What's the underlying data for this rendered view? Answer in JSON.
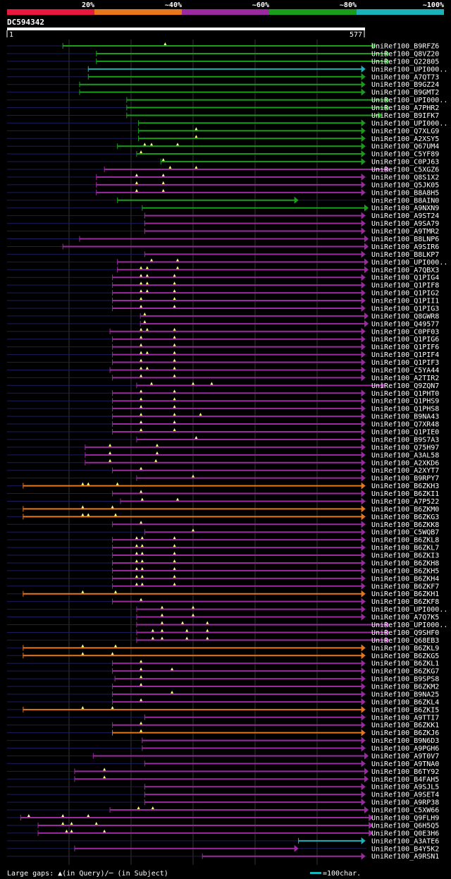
{
  "legend_top": {
    "labels": [
      "20%",
      "~40%",
      "~60%",
      "~80%",
      "~100%"
    ],
    "colors": [
      "#e8193c",
      "#e8761a",
      "#9b2aa0",
      "#1a9e1a",
      "#1ab3b8"
    ]
  },
  "query": {
    "id": "DC594342",
    "start_label": "1",
    "end_label": "577"
  },
  "footer": {
    "gap_text": "Large gaps: ▲(in Query)/─ (in Subject)",
    "scale_text": "=100char."
  },
  "colors": {
    "red": "#e8193c",
    "orange": "#e8761a",
    "purple": "#9b2aa0",
    "green": "#1a9e1a",
    "cyan": "#1ab3b8",
    "background": "#000000",
    "gridline": "#333333",
    "track": "#1c1c5a"
  },
  "chart_data": {
    "type": "alignment",
    "query_length": 577,
    "hits": [
      {
        "id": "UniRef100_B9RFZ6",
        "start": 90,
        "end": 595,
        "identity": "~80%",
        "query_gaps": [
          255
        ]
      },
      {
        "id": "UniRef100_Q8VZ20",
        "start": 144,
        "end": 617,
        "identity": "~80%",
        "query_gaps": []
      },
      {
        "id": "UniRef100_Q22805",
        "start": 144,
        "end": 617,
        "identity": "~80%",
        "query_gaps": []
      },
      {
        "id": "UniRef100_UPI000..",
        "start": 131,
        "end": 578,
        "identity": "~100%",
        "query_gaps": []
      },
      {
        "id": "UniRef100_A7QT73",
        "start": 131,
        "end": 578,
        "identity": "~80%",
        "query_gaps": []
      },
      {
        "id": "UniRef100_B9GZ24",
        "start": 117,
        "end": 578,
        "identity": "~80%",
        "query_gaps": []
      },
      {
        "id": "UniRef100_B9GMT2",
        "start": 117,
        "end": 578,
        "identity": "~80%",
        "query_gaps": []
      },
      {
        "id": "UniRef100_UPI000..",
        "start": 193,
        "end": 617,
        "identity": "~80%",
        "query_gaps": []
      },
      {
        "id": "UniRef100_A7PHR2",
        "start": 193,
        "end": 617,
        "identity": "~80%",
        "query_gaps": []
      },
      {
        "id": "UniRef100_B9IFK7",
        "start": 193,
        "end": 605,
        "identity": "~80%",
        "query_gaps": []
      },
      {
        "id": "UniRef100_UPI000..",
        "start": 212,
        "end": 578,
        "identity": "~80%",
        "query_gaps": []
      },
      {
        "id": "UniRef100_Q7XLG9",
        "start": 212,
        "end": 578,
        "identity": "~80%",
        "query_gaps": [
          305
        ]
      },
      {
        "id": "UniRef100_A2XSY5",
        "start": 212,
        "end": 578,
        "identity": "~80%",
        "query_gaps": [
          305
        ]
      },
      {
        "id": "UniRef100_Q67UM4",
        "start": 178,
        "end": 578,
        "identity": "~80%",
        "query_gaps": [
          222,
          233,
          275
        ]
      },
      {
        "id": "UniRef100_C5YF89",
        "start": 209,
        "end": 578,
        "identity": "~80%",
        "query_gaps": [
          216
        ]
      },
      {
        "id": "UniRef100_C0PJ63",
        "start": 248,
        "end": 578,
        "identity": "~80%",
        "query_gaps": [
          252
        ]
      },
      {
        "id": "UniRef100_C5XGZ6",
        "start": 157,
        "end": 617,
        "identity": "~60%",
        "query_gaps": [
          263,
          305
        ]
      },
      {
        "id": "UniRef100_Q8S1X2",
        "start": 144,
        "end": 578,
        "identity": "~60%",
        "query_gaps": [
          209,
          252
        ]
      },
      {
        "id": "UniRef100_Q5JK05",
        "start": 144,
        "end": 578,
        "identity": "~60%",
        "query_gaps": [
          209,
          252
        ]
      },
      {
        "id": "UniRef100_B8A8H5",
        "start": 144,
        "end": 578,
        "identity": "~60%",
        "query_gaps": [
          209,
          252
        ]
      },
      {
        "id": "UniRef100_B8AIN0",
        "start": 178,
        "end": 470,
        "identity": "~80%",
        "query_gaps": []
      },
      {
        "id": "UniRef100_A9NXN9",
        "start": 218,
        "end": 583,
        "identity": "~80%",
        "query_gaps": []
      },
      {
        "id": "UniRef100_A9ST24",
        "start": 222,
        "end": 578,
        "identity": "~60%",
        "query_gaps": []
      },
      {
        "id": "UniRef100_A9SA79",
        "start": 222,
        "end": 578,
        "identity": "~60%",
        "query_gaps": []
      },
      {
        "id": "UniRef100_A9TMR2",
        "start": 222,
        "end": 578,
        "identity": "~60%",
        "query_gaps": []
      },
      {
        "id": "UniRef100_B8LNP6",
        "start": 117,
        "end": 583,
        "identity": "~60%",
        "query_gaps": []
      },
      {
        "id": "UniRef100_A9SIR6",
        "start": 90,
        "end": 583,
        "identity": "~60%",
        "query_gaps": []
      },
      {
        "id": "UniRef100_B8LKP7",
        "start": 222,
        "end": 578,
        "identity": "~60%",
        "query_gaps": []
      },
      {
        "id": "UniRef100_UPI000..",
        "start": 178,
        "end": 583,
        "identity": "~60%",
        "query_gaps": [
          233,
          275
        ]
      },
      {
        "id": "UniRef100_A7QBX3",
        "start": 178,
        "end": 583,
        "identity": "~60%",
        "query_gaps": [
          216,
          226,
          275
        ]
      },
      {
        "id": "UniRef100_Q1PIG4",
        "start": 170,
        "end": 578,
        "identity": "~60%",
        "query_gaps": [
          216,
          226,
          270
        ]
      },
      {
        "id": "UniRef100_Q1PIF8",
        "start": 170,
        "end": 578,
        "identity": "~60%",
        "query_gaps": [
          216,
          226,
          270
        ]
      },
      {
        "id": "UniRef100_Q1PIG2",
        "start": 170,
        "end": 578,
        "identity": "~60%",
        "query_gaps": [
          216,
          226,
          270
        ]
      },
      {
        "id": "UniRef100_Q1PII1",
        "start": 170,
        "end": 578,
        "identity": "~60%",
        "query_gaps": [
          216,
          270
        ]
      },
      {
        "id": "UniRef100_Q1PIG3",
        "start": 170,
        "end": 578,
        "identity": "~60%",
        "query_gaps": [
          216,
          270
        ]
      },
      {
        "id": "UniRef100_Q8GWR8",
        "start": 215,
        "end": 583,
        "identity": "~60%",
        "query_gaps": [
          222
        ]
      },
      {
        "id": "UniRef100_Q49577",
        "start": 215,
        "end": 583,
        "identity": "~60%",
        "query_gaps": [
          222
        ]
      },
      {
        "id": "UniRef100_C0PF03",
        "start": 166,
        "end": 578,
        "identity": "~60%",
        "query_gaps": [
          216,
          226,
          270
        ]
      },
      {
        "id": "UniRef100_Q1PIG6",
        "start": 170,
        "end": 578,
        "identity": "~60%",
        "query_gaps": [
          216,
          270
        ]
      },
      {
        "id": "UniRef100_Q1PIF6",
        "start": 170,
        "end": 578,
        "identity": "~60%",
        "query_gaps": [
          216,
          270
        ]
      },
      {
        "id": "UniRef100_Q1PIF4",
        "start": 170,
        "end": 578,
        "identity": "~60%",
        "query_gaps": [
          216,
          226,
          270
        ]
      },
      {
        "id": "UniRef100_Q1PIF3",
        "start": 170,
        "end": 578,
        "identity": "~60%",
        "query_gaps": [
          216,
          270
        ]
      },
      {
        "id": "UniRef100_C5YA44",
        "start": 166,
        "end": 578,
        "identity": "~60%",
        "query_gaps": [
          216,
          226,
          270
        ]
      },
      {
        "id": "UniRef100_A2TIR2",
        "start": 170,
        "end": 578,
        "identity": "~60%",
        "query_gaps": [
          216,
          270
        ]
      },
      {
        "id": "UniRef100_Q9ZQN7",
        "start": 209,
        "end": 610,
        "identity": "~60%",
        "query_gaps": [
          233,
          300,
          330
        ]
      },
      {
        "id": "UniRef100_Q1PHT0",
        "start": 170,
        "end": 578,
        "identity": "~60%",
        "query_gaps": [
          216,
          270
        ]
      },
      {
        "id": "UniRef100_Q1PHS9",
        "start": 170,
        "end": 578,
        "identity": "~60%",
        "query_gaps": [
          216,
          270
        ]
      },
      {
        "id": "UniRef100_Q1PHS8",
        "start": 170,
        "end": 578,
        "identity": "~60%",
        "query_gaps": [
          216,
          270
        ]
      },
      {
        "id": "UniRef100_B9NA43",
        "start": 170,
        "end": 578,
        "identity": "~60%",
        "query_gaps": [
          216,
          270,
          312
        ]
      },
      {
        "id": "UniRef100_Q7XR48",
        "start": 170,
        "end": 578,
        "identity": "~60%",
        "query_gaps": [
          216,
          270
        ]
      },
      {
        "id": "UniRef100_Q1PIE0",
        "start": 170,
        "end": 578,
        "identity": "~60%",
        "query_gaps": [
          216,
          270
        ]
      },
      {
        "id": "UniRef100_B9S7A3",
        "start": 209,
        "end": 578,
        "identity": "~60%",
        "query_gaps": [
          305
        ]
      },
      {
        "id": "UniRef100_Q75H97",
        "start": 126,
        "end": 578,
        "identity": "~60%",
        "query_gaps": [
          166,
          242
        ]
      },
      {
        "id": "UniRef100_A3AL58",
        "start": 126,
        "end": 578,
        "identity": "~60%",
        "query_gaps": [
          166,
          242
        ]
      },
      {
        "id": "UniRef100_A2XKD6",
        "start": 126,
        "end": 578,
        "identity": "~60%",
        "query_gaps": [
          166,
          240
        ]
      },
      {
        "id": "UniRef100_A2XYT7",
        "start": 170,
        "end": 578,
        "identity": "~60%",
        "query_gaps": [
          216
        ]
      },
      {
        "id": "UniRef100_B9RPY7",
        "start": 209,
        "end": 578,
        "identity": "~60%",
        "query_gaps": [
          300
        ]
      },
      {
        "id": "UniRef100_B6ZKH3",
        "start": 26,
        "end": 578,
        "identity": "~40%",
        "query_gaps": [
          122,
          131,
          178
        ]
      },
      {
        "id": "UniRef100_B6ZKI1",
        "start": 170,
        "end": 578,
        "identity": "~60%",
        "query_gaps": [
          216
        ]
      },
      {
        "id": "UniRef100_A7P522",
        "start": 183,
        "end": 578,
        "identity": "~60%",
        "query_gaps": [
          218,
          275
        ]
      },
      {
        "id": "UniRef100_B6ZKM0",
        "start": 26,
        "end": 578,
        "identity": "~40%",
        "query_gaps": [
          122,
          170
        ]
      },
      {
        "id": "UniRef100_B6ZKG3",
        "start": 26,
        "end": 578,
        "identity": "~40%",
        "query_gaps": [
          122,
          131,
          175
        ]
      },
      {
        "id": "UniRef100_B6ZKK8",
        "start": 170,
        "end": 578,
        "identity": "~60%",
        "query_gaps": [
          216
        ]
      },
      {
        "id": "UniRef100_C5WQB7",
        "start": 222,
        "end": 578,
        "identity": "~60%",
        "query_gaps": [
          300
        ]
      },
      {
        "id": "UniRef100_B6ZKL8",
        "start": 170,
        "end": 578,
        "identity": "~60%",
        "query_gaps": [
          209,
          218,
          270
        ]
      },
      {
        "id": "UniRef100_B6ZKL7",
        "start": 170,
        "end": 578,
        "identity": "~60%",
        "query_gaps": [
          209,
          218,
          270
        ]
      },
      {
        "id": "UniRef100_B6ZKI3",
        "start": 170,
        "end": 578,
        "identity": "~60%",
        "query_gaps": [
          209,
          218,
          270
        ]
      },
      {
        "id": "UniRef100_B6ZKH8",
        "start": 170,
        "end": 578,
        "identity": "~60%",
        "query_gaps": [
          209,
          218,
          270
        ]
      },
      {
        "id": "UniRef100_B6ZKH5",
        "start": 170,
        "end": 578,
        "identity": "~60%",
        "query_gaps": [
          209,
          218,
          270
        ]
      },
      {
        "id": "UniRef100_B6ZKH4",
        "start": 170,
        "end": 578,
        "identity": "~60%",
        "query_gaps": [
          209,
          218,
          270
        ]
      },
      {
        "id": "UniRef100_B6ZKF7",
        "start": 170,
        "end": 578,
        "identity": "~60%",
        "query_gaps": [
          209,
          218,
          270
        ]
      },
      {
        "id": "UniRef100_B6ZKH1",
        "start": 26,
        "end": 578,
        "identity": "~40%",
        "query_gaps": [
          122,
          175
        ]
      },
      {
        "id": "UniRef100_B6ZKF8",
        "start": 170,
        "end": 578,
        "identity": "~60%",
        "query_gaps": [
          216
        ]
      },
      {
        "id": "UniRef100_UPI000..",
        "start": 209,
        "end": 578,
        "identity": "~60%",
        "query_gaps": [
          250,
          300
        ]
      },
      {
        "id": "UniRef100_A7Q7K5",
        "start": 209,
        "end": 578,
        "identity": "~60%",
        "query_gaps": [
          250,
          300
        ]
      },
      {
        "id": "UniRef100_UPI000..",
        "start": 209,
        "end": 617,
        "identity": "~60%",
        "query_gaps": [
          250,
          283,
          323
        ]
      },
      {
        "id": "UniRef100_Q9SHF0",
        "start": 209,
        "end": 617,
        "identity": "~60%",
        "query_gaps": [
          235,
          250,
          290,
          323
        ]
      },
      {
        "id": "UniRef100_Q68EB3",
        "start": 209,
        "end": 617,
        "identity": "~60%",
        "query_gaps": [
          235,
          250,
          290,
          323
        ]
      },
      {
        "id": "UniRef100_B6ZKL9",
        "start": 26,
        "end": 578,
        "identity": "~40%",
        "query_gaps": [
          122,
          175
        ]
      },
      {
        "id": "UniRef100_B6ZKG5",
        "start": 26,
        "end": 578,
        "identity": "~40%",
        "query_gaps": [
          122,
          170
        ]
      },
      {
        "id": "UniRef100_B6ZKL1",
        "start": 170,
        "end": 578,
        "identity": "~60%",
        "query_gaps": [
          216
        ]
      },
      {
        "id": "UniRef100_B6ZKG7",
        "start": 170,
        "end": 578,
        "identity": "~60%",
        "query_gaps": [
          216,
          266
        ]
      },
      {
        "id": "UniRef100_B9SPS8",
        "start": 174,
        "end": 578,
        "identity": "~60%",
        "query_gaps": [
          216
        ]
      },
      {
        "id": "UniRef100_B6ZKM2",
        "start": 170,
        "end": 578,
        "identity": "~60%",
        "query_gaps": [
          216
        ]
      },
      {
        "id": "UniRef100_B9NA25",
        "start": 170,
        "end": 578,
        "identity": "~60%",
        "query_gaps": [
          266
        ]
      },
      {
        "id": "UniRef100_B6ZKL4",
        "start": 170,
        "end": 578,
        "identity": "~60%",
        "query_gaps": [
          216
        ]
      },
      {
        "id": "UniRef100_B6ZKI5",
        "start": 26,
        "end": 578,
        "identity": "~40%",
        "query_gaps": [
          122,
          170
        ]
      },
      {
        "id": "UniRef100_A9TTI7",
        "start": 222,
        "end": 578,
        "identity": "~60%",
        "query_gaps": []
      },
      {
        "id": "UniRef100_B6ZKK1",
        "start": 170,
        "end": 578,
        "identity": "~60%",
        "query_gaps": [
          216
        ]
      },
      {
        "id": "UniRef100_B6ZKJ6",
        "start": 170,
        "end": 578,
        "identity": "~40%",
        "query_gaps": [
          216
        ]
      },
      {
        "id": "UniRef100_B9N6D3",
        "start": 218,
        "end": 578,
        "identity": "~60%",
        "query_gaps": []
      },
      {
        "id": "UniRef100_A9PGH6",
        "start": 218,
        "end": 578,
        "identity": "~60%",
        "query_gaps": []
      },
      {
        "id": "UniRef100_A9T0V7",
        "start": 139,
        "end": 583,
        "identity": "~60%",
        "query_gaps": []
      },
      {
        "id": "UniRef100_A9TNA0",
        "start": 222,
        "end": 578,
        "identity": "~60%",
        "query_gaps": []
      },
      {
        "id": "UniRef100_B6TY92",
        "start": 109,
        "end": 583,
        "identity": "~60%",
        "query_gaps": [
          157
        ]
      },
      {
        "id": "UniRef100_B4FAH5",
        "start": 109,
        "end": 583,
        "identity": "~60%",
        "query_gaps": [
          157
        ]
      },
      {
        "id": "UniRef100_A9SJL5",
        "start": 222,
        "end": 578,
        "identity": "~60%",
        "query_gaps": []
      },
      {
        "id": "UniRef100_A9SET4",
        "start": 222,
        "end": 578,
        "identity": "~60%",
        "query_gaps": []
      },
      {
        "id": "UniRef100_A9RP38",
        "start": 222,
        "end": 578,
        "identity": "~60%",
        "query_gaps": []
      },
      {
        "id": "UniRef100_C5XW66",
        "start": 166,
        "end": 583,
        "identity": "~60%",
        "query_gaps": [
          212,
          235
        ]
      },
      {
        "id": "UniRef100_Q9FLH9",
        "start": 22,
        "end": 590,
        "identity": "~60%",
        "query_gaps": [
          35,
          90,
          131
        ]
      },
      {
        "id": "UniRef100_Q6H5Q5",
        "start": 50,
        "end": 590,
        "identity": "~60%",
        "query_gaps": [
          90,
          104,
          144
        ]
      },
      {
        "id": "UniRef100_Q0E3H6",
        "start": 50,
        "end": 590,
        "identity": "~60%",
        "query_gaps": [
          96,
          104,
          157
        ]
      },
      {
        "id": "UniRef100_A3ATE6",
        "start": 470,
        "end": 578,
        "identity": "~100%",
        "query_gaps": []
      },
      {
        "id": "UniRef100_B4Y5K2",
        "start": 109,
        "end": 470,
        "identity": "~60%",
        "query_gaps": []
      },
      {
        "id": "UniRef100_A9RSN1",
        "start": 315,
        "end": 578,
        "identity": "~60%",
        "query_gaps": []
      }
    ]
  }
}
